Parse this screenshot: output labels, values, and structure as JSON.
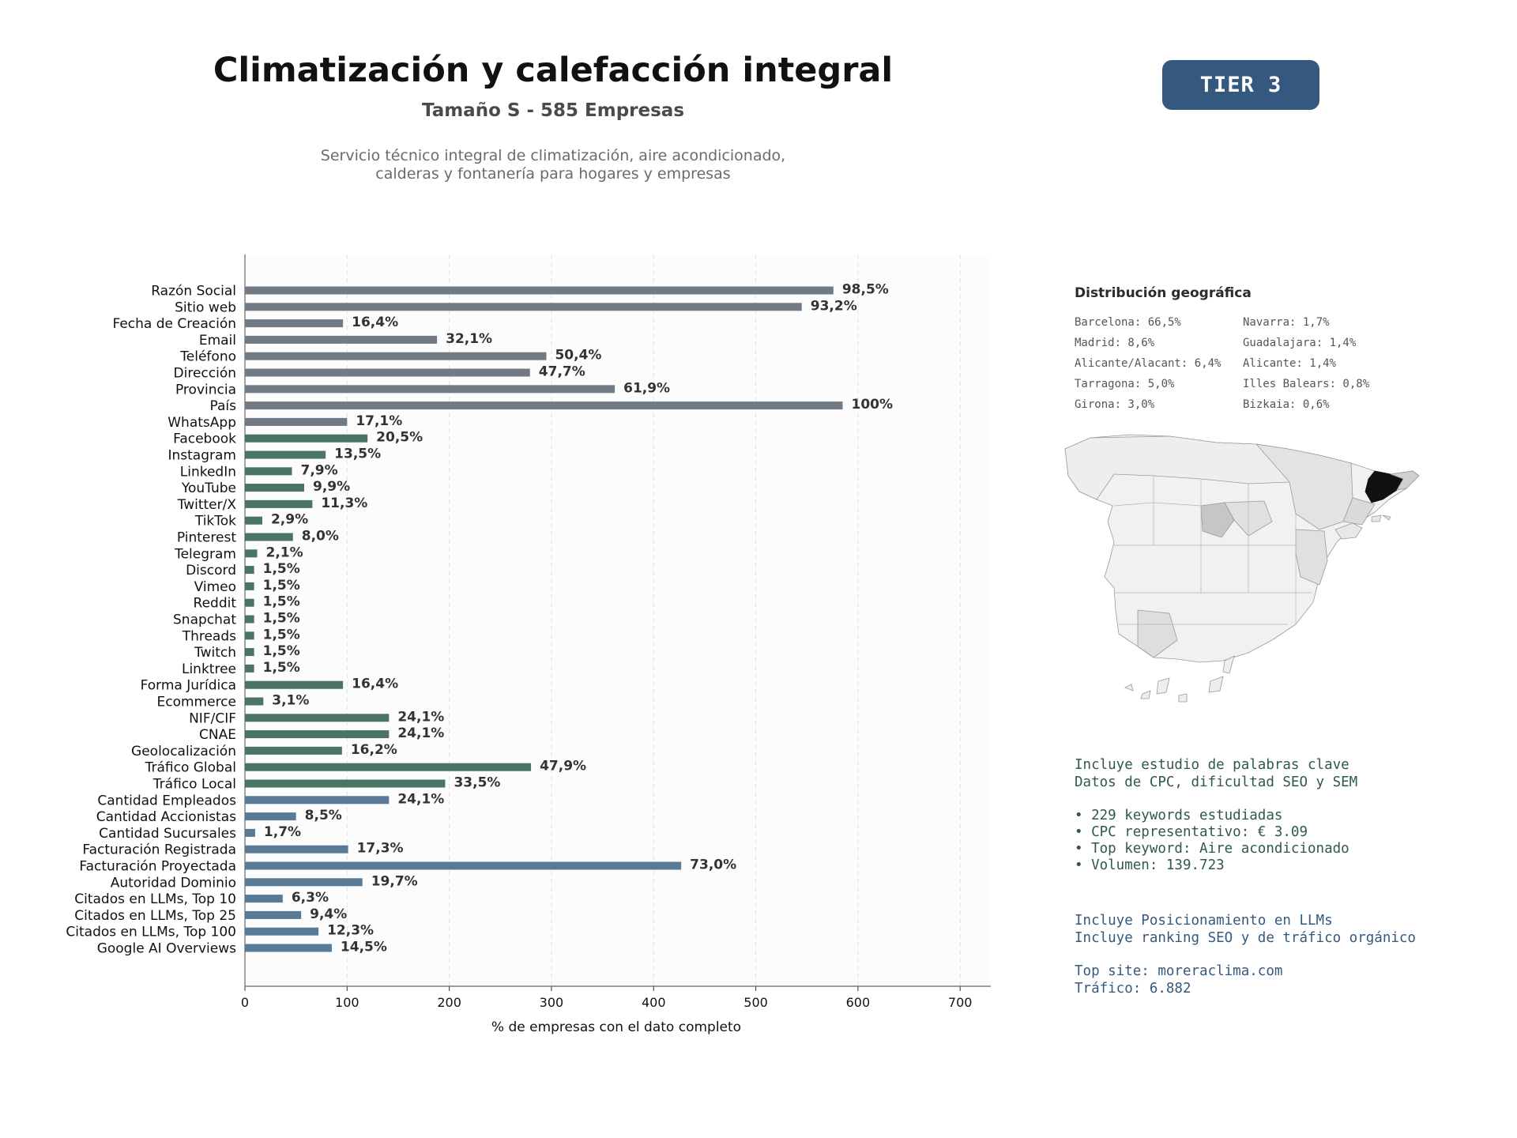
{
  "header": {
    "title": "Climatización y calefacción integral",
    "subtitle": "Tamaño S - 585 Empresas",
    "description_line1": "Servicio técnico integral de climatización, aire acondicionado,",
    "description_line2": "calderas y fontanería para hogares y empresas",
    "tier": "TIER 3"
  },
  "colors": {
    "gray": "#727b84",
    "green": "#4a7564",
    "blue": "#587a97",
    "tier_bg": "#35597e",
    "highlight": "#111111"
  },
  "chart_data": {
    "type": "bar",
    "orientation": "horizontal",
    "xlabel": "% de empresas con el dato completo",
    "xlim": [
      0,
      730
    ],
    "xticks": [
      0,
      100,
      200,
      300,
      400,
      500,
      600,
      700
    ],
    "grid": true,
    "categories": [
      "Razón Social",
      "Sitio web",
      "Fecha de Creación",
      "Email",
      "Teléfono",
      "Dirección",
      "Provincia",
      "País",
      "WhatsApp",
      "Facebook",
      "Instagram",
      "LinkedIn",
      "YouTube",
      "Twitter/X",
      "TikTok",
      "Pinterest",
      "Telegram",
      "Discord",
      "Vimeo",
      "Reddit",
      "Snapchat",
      "Threads",
      "Twitch",
      "Linktree",
      "Forma Jurídica",
      "Ecommerce",
      "NIF/CIF",
      "CNAE",
      "Geolocalización",
      "Tráfico Global",
      "Tráfico Local",
      "Cantidad Empleados",
      "Cantidad Accionistas",
      "Cantidad Sucursales",
      "Facturación Registrada",
      "Facturación Proyectada",
      "Autoridad Dominio",
      "Citados en LLMs, Top 10",
      "Citados en LLMs, Top 25",
      "Citados en LLMs, Top 100",
      "Google AI Overviews"
    ],
    "values": [
      576,
      545,
      96,
      188,
      295,
      279,
      362,
      585,
      100,
      120,
      79,
      46,
      58,
      66,
      17,
      47,
      12,
      9,
      9,
      9,
      9,
      9,
      9,
      9,
      96,
      18,
      141,
      141,
      95,
      280,
      196,
      141,
      50,
      10,
      101,
      427,
      115,
      37,
      55,
      72,
      85
    ],
    "labels": [
      "98,5%",
      "93,2%",
      "16,4%",
      "32,1%",
      "50,4%",
      "47,7%",
      "61,9%",
      "100%",
      "17,1%",
      "20,5%",
      "13,5%",
      "7,9%",
      "9,9%",
      "11,3%",
      "2,9%",
      "8,0%",
      "2,1%",
      "1,5%",
      "1,5%",
      "1,5%",
      "1,5%",
      "1,5%",
      "1,5%",
      "1,5%",
      "16,4%",
      "3,1%",
      "24,1%",
      "24,1%",
      "16,2%",
      "47,9%",
      "33,5%",
      "24,1%",
      "8,5%",
      "1,7%",
      "17,3%",
      "73,0%",
      "19,7%",
      "6,3%",
      "9,4%",
      "12,3%",
      "14,5%"
    ],
    "groups": [
      "gray",
      "gray",
      "gray",
      "gray",
      "gray",
      "gray",
      "gray",
      "gray",
      "gray",
      "green",
      "green",
      "green",
      "green",
      "green",
      "green",
      "green",
      "green",
      "green",
      "green",
      "green",
      "green",
      "green",
      "green",
      "green",
      "green",
      "green",
      "green",
      "green",
      "green",
      "green",
      "green",
      "blue",
      "blue",
      "blue",
      "blue",
      "blue",
      "blue",
      "blue",
      "blue",
      "blue",
      "blue"
    ]
  },
  "geo": {
    "title": "Distribución geográfica",
    "col1": [
      "Barcelona: 66,5%",
      "Madrid: 8,6%",
      "Alicante/Alacant: 6,4%",
      "Tarragona: 5,0%",
      "Girona: 3,0%"
    ],
    "col2": [
      "Navarra: 1,7%",
      "Guadalajara: 1,4%",
      "Alicante: 1,4%",
      "Illes Balears: 0,8%",
      "Bizkaia: 0,6%"
    ]
  },
  "keywords": {
    "line1": "Incluye estudio de palabras clave",
    "line2": "Datos de CPC, dificultad SEO y SEM",
    "bullet1": "• 229 keywords estudiadas",
    "bullet2": "• CPC representativo: € 3.09",
    "bullet3": "• Top keyword: Aire acondicionado",
    "bullet4": "• Volumen: 139.723"
  },
  "llm": {
    "line1": "Incluye Posicionamiento en LLMs",
    "line2": "Incluye ranking SEO y de tráfico orgánico",
    "top_site": "Top site: moreraclima.com",
    "traffic": "Tráfico: 6.882"
  }
}
